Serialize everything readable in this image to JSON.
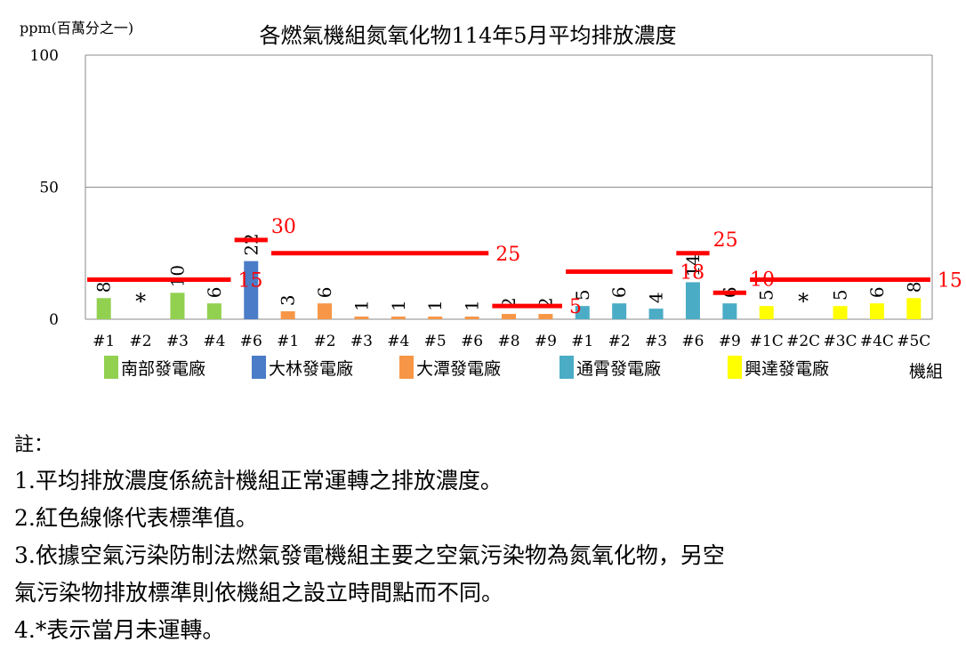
{
  "chart_data": {
    "type": "bar",
    "title": "各燃氣機組氮氧化物114年5月平均排放濃度",
    "ylabel": "ppm(百萬分之一)",
    "xlabel": "機組",
    "ylim": [
      0,
      100
    ],
    "yticks": [
      0,
      50,
      100
    ],
    "grid": true,
    "legend_position": "bottom",
    "categories": [
      "#1",
      "#2",
      "#3",
      "#4",
      "#6",
      "#1",
      "#2",
      "#3",
      "#4",
      "#5",
      "#6",
      "#8",
      "#9",
      "#1",
      "#2",
      "#3",
      "#6",
      "#9",
      "#1C",
      "#2C",
      "#3C",
      "#4C",
      "#5C"
    ],
    "values": [
      8,
      null,
      10,
      6,
      22,
      3,
      6,
      1,
      1,
      1,
      1,
      2,
      2,
      5,
      6,
      4,
      14,
      6,
      5,
      null,
      5,
      6,
      8
    ],
    "bar_labels": [
      "8",
      "*",
      "10",
      "6",
      "22",
      "3",
      "6",
      "1",
      "1",
      "1",
      "1",
      "2",
      "2",
      "5",
      "6",
      "4",
      "14",
      "6",
      "5",
      "*",
      "5",
      "6",
      "8"
    ],
    "plants": [
      {
        "name": "南部發電廠",
        "color": "#92D050",
        "bars": [
          0,
          1,
          2,
          3
        ]
      },
      {
        "name": "大林發電廠",
        "color": "#4A7CC8",
        "bars": [
          4
        ]
      },
      {
        "name": "大潭發電廠",
        "color": "#F79646",
        "bars": [
          5,
          6,
          7,
          8,
          9,
          10,
          11,
          12
        ]
      },
      {
        "name": "通霄發電廠",
        "color": "#4BACC6",
        "bars": [
          13,
          14,
          15,
          16,
          17
        ]
      },
      {
        "name": "興達發電廠",
        "color": "#FFFF00",
        "bars": [
          18,
          19,
          20,
          21,
          22
        ]
      }
    ],
    "standards": [
      {
        "value": 15,
        "from": 0,
        "to": 3,
        "label": "15"
      },
      {
        "value": 30,
        "from": 4,
        "to": 4,
        "label": "30"
      },
      {
        "value": 25,
        "from": 5,
        "to": 10,
        "label": "25"
      },
      {
        "value": 5,
        "from": 11,
        "to": 12,
        "label": "5"
      },
      {
        "value": 18,
        "from": 13,
        "to": 15,
        "label": "18"
      },
      {
        "value": 25,
        "from": 16,
        "to": 16,
        "label": "25"
      },
      {
        "value": 10,
        "from": 17,
        "to": 17,
        "label": "10"
      },
      {
        "value": 15,
        "from": 18,
        "to": 22,
        "label": "15"
      }
    ],
    "standard_color": "#FF0000"
  },
  "notes": {
    "heading": "註：",
    "lines": [
      "1.平均排放濃度係統計機組正常運轉之排放濃度。",
      "2.紅色線條代表標準值。",
      "3.依據空氣污染防制法燃氣發電機組主要之空氣污染物為氮氧化物，另空",
      "氣污染物排放標準則依機組之設立時間點而不同。",
      "4.*表示當月未運轉。"
    ]
  }
}
